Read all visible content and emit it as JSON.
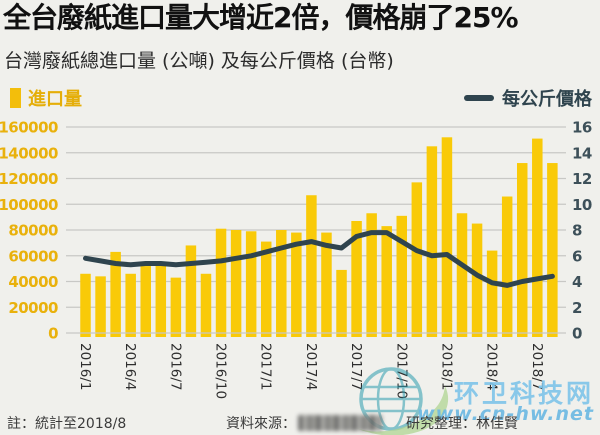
{
  "header": {
    "title": "全台廢紙進口量大增近2倍，價格崩了25%",
    "subtitle": "台灣廢紙總進口量 (公噸) 及每公斤價格 (台幣)"
  },
  "legend": {
    "bars": "進口量",
    "line": "每公斤價格"
  },
  "chart_data": {
    "type": "bar+line",
    "title": "台灣廢紙總進口量 (公噸) 及每公斤價格 (台幣)",
    "categories": [
      "2016/1",
      "2016/2",
      "2016/3",
      "2016/4",
      "2016/5",
      "2016/6",
      "2016/7",
      "2016/8",
      "2016/9",
      "2016/10",
      "2016/11",
      "2016/12",
      "2017/1",
      "2017/2",
      "2017/3",
      "2017/4",
      "2017/5",
      "2017/6",
      "2017/7",
      "2017/8",
      "2017/9",
      "2017/10",
      "2017/11",
      "2017/12",
      "2018/1",
      "2018/2",
      "2018/3",
      "2018/4",
      "2018/5",
      "2018/6",
      "2018/7",
      "2018/8"
    ],
    "x_tick_labels": [
      "2016/1",
      "2016/4",
      "2016/7",
      "2016/10",
      "2017/1",
      "2017/4",
      "2017/7",
      "2017/10",
      "2018/1",
      "2018/4",
      "2018/7"
    ],
    "series": [
      {
        "name": "進口量",
        "type": "bar",
        "axis": "left",
        "unit": "公噸",
        "color": "#F9CA08",
        "values": [
          46000,
          44000,
          63000,
          46000,
          52000,
          53000,
          43000,
          68000,
          46000,
          81000,
          80000,
          79000,
          71000,
          80000,
          78000,
          107000,
          78000,
          49000,
          87000,
          93000,
          83000,
          91000,
          117000,
          145000,
          152000,
          93000,
          85000,
          64000,
          106000,
          132000,
          151000,
          132000
        ]
      },
      {
        "name": "每公斤價格",
        "type": "line",
        "axis": "right",
        "unit": "台幣",
        "color": "#2F444E",
        "values": [
          5.8,
          5.6,
          5.4,
          5.3,
          5.4,
          5.4,
          5.3,
          5.4,
          5.5,
          5.6,
          5.8,
          6.0,
          6.3,
          6.6,
          6.9,
          7.1,
          6.8,
          6.6,
          7.5,
          7.8,
          7.8,
          7.1,
          6.4,
          6.0,
          6.1,
          5.3,
          4.5,
          3.9,
          3.7,
          4.0,
          4.2,
          4.4
        ]
      }
    ],
    "left_axis": {
      "min": 0,
      "max": 160000,
      "step": 20000,
      "tick_labels": [
        "160000",
        "140000",
        "120000",
        "100000",
        "80000",
        "60000",
        "40000",
        "20000",
        "0"
      ]
    },
    "right_axis": {
      "min": 0,
      "max": 16,
      "step": 2,
      "tick_labels": [
        "16",
        "14",
        "12",
        "10",
        "8",
        "6",
        "4",
        "2",
        "0"
      ]
    },
    "grid": true,
    "legend_position": "top"
  },
  "watermark": {
    "site_name": "环卫科技网",
    "site_url": "www.cn-hw.net"
  },
  "footer": {
    "note": "註：統計至2018/8",
    "source_label": "資料來源：",
    "source_redacted": true,
    "credit": "研究整理：林佳賢"
  },
  "colors": {
    "background": "#F0F0EC",
    "bar": "#F9CA08",
    "line": "#2F444E",
    "axis_left_labels": "#E9B10C",
    "axis_right_labels": "#3D5059",
    "x_labels": "#2e2e2e",
    "grid": "#C8C8C5",
    "title": "#111111",
    "watermark_blue": "#7DC3E9",
    "logo_teal": "#2D9DAF",
    "logo_green": "#7CBF4A"
  }
}
